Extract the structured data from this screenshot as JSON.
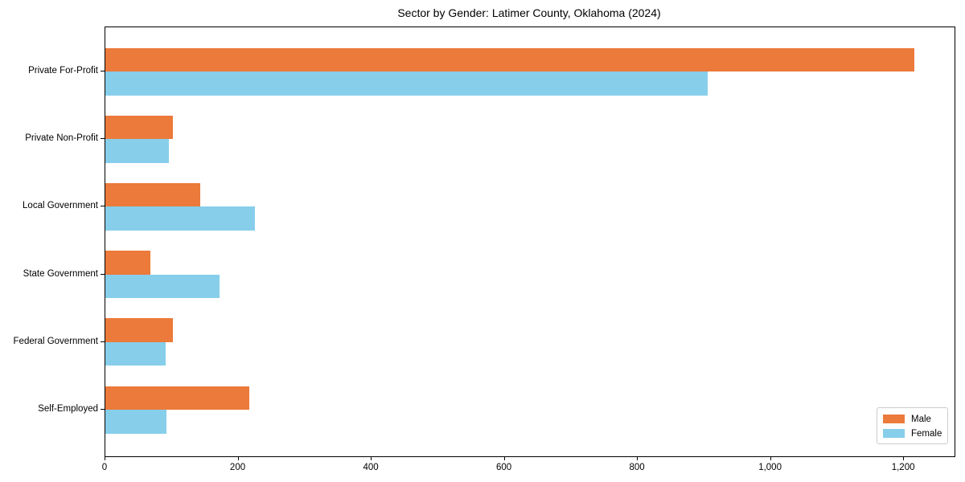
{
  "title": "Sector by Gender: Latimer County, Oklahoma (2024)",
  "chart_data": {
    "type": "bar",
    "orientation": "horizontal",
    "title": "Sector by Gender: Latimer County, Oklahoma (2024)",
    "xlabel": "",
    "ylabel": "",
    "categories": [
      "Private For-Profit",
      "Private Non-Profit",
      "Local Government",
      "State Government",
      "Federal Government",
      "Self-Employed"
    ],
    "series": [
      {
        "name": "Male",
        "color": "#EB7A3B",
        "values": [
          1215,
          102,
          143,
          68,
          101,
          216
        ]
      },
      {
        "name": "Female",
        "color": "#87CEEB",
        "values": [
          905,
          95,
          225,
          171,
          91,
          92
        ]
      }
    ],
    "xlim": [
      0,
      1276
    ],
    "xticks": [
      0,
      200,
      400,
      600,
      800,
      1000,
      1200
    ],
    "xtick_labels": [
      "0",
      "200",
      "400",
      "600",
      "800",
      "1,000",
      "1,200"
    ],
    "grid": false,
    "legend": {
      "position": "lower right",
      "entries": [
        "Male",
        "Female"
      ]
    }
  }
}
